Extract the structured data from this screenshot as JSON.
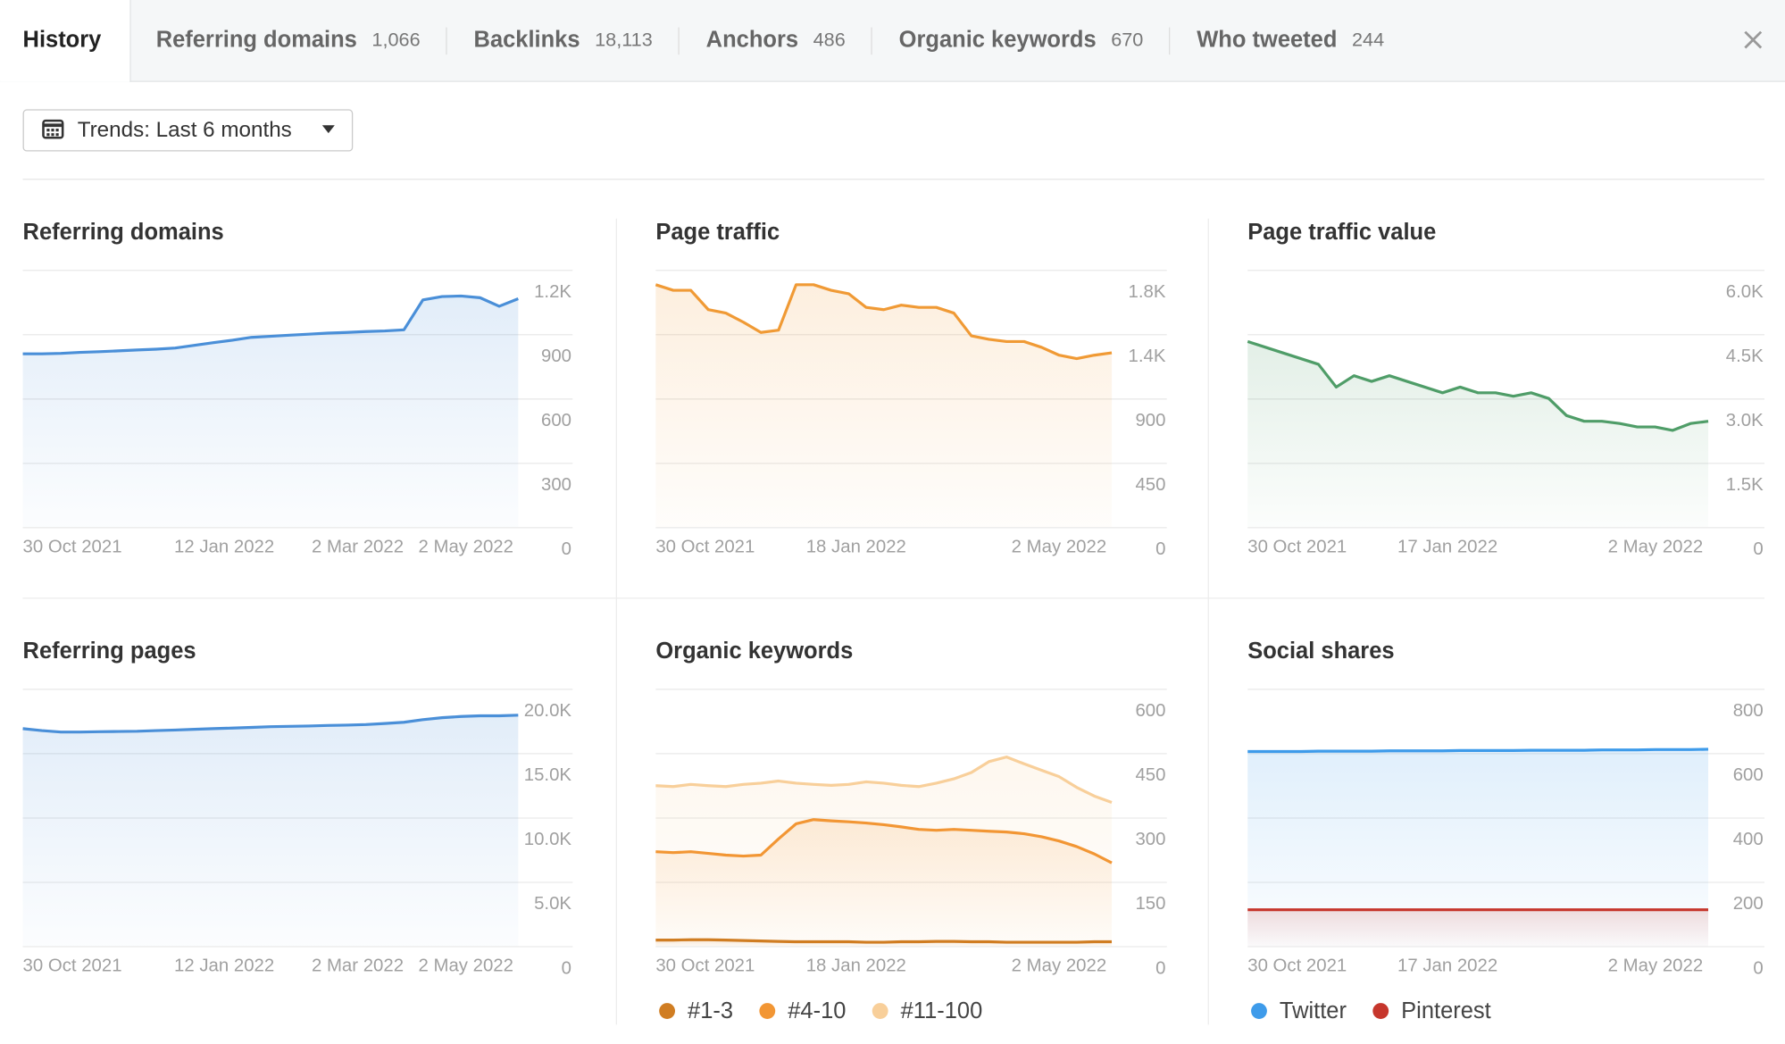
{
  "tabs": [
    {
      "label": "History"
    },
    {
      "label": "Referring domains",
      "count": "1,066"
    },
    {
      "label": "Backlinks",
      "count": "18,113"
    },
    {
      "label": "Anchors",
      "count": "486"
    },
    {
      "label": "Organic keywords",
      "count": "670"
    },
    {
      "label": "Who tweeted",
      "count": "244"
    }
  ],
  "filter": "Trends: Last 6 months",
  "dates": [
    "2021-10-30",
    "2021-11-06",
    "2021-11-13",
    "2021-11-20",
    "2021-11-27",
    "2021-12-04",
    "2021-12-11",
    "2021-12-18",
    "2021-12-25",
    "2022-01-01",
    "2022-01-08",
    "2022-01-15",
    "2022-01-22",
    "2022-01-29",
    "2022-02-05",
    "2022-02-12",
    "2022-02-19",
    "2022-02-26",
    "2022-03-05",
    "2022-03-12",
    "2022-03-19",
    "2022-03-26",
    "2022-04-02",
    "2022-04-09",
    "2022-04-16",
    "2022-04-23",
    "2022-04-30"
  ],
  "charts": [
    {
      "type": "area",
      "title": "Referring domains",
      "xlim": [
        "2021-10-30",
        "2022-05-02"
      ],
      "xticks": [
        {
          "value": "2021-10-30",
          "label": "30 Oct 2021"
        },
        {
          "value": "2022-01-12",
          "label": "12 Jan 2022"
        },
        {
          "value": "2022-03-02",
          "label": "2 Mar 2022"
        },
        {
          "value": "2022-05-02",
          "label": "2 May 2022"
        }
      ],
      "ylim": [
        0,
        1200
      ],
      "yticks": [
        0,
        300,
        600,
        900,
        {
          "value": 1200,
          "label": "1.2K"
        }
      ],
      "series": [
        {
          "color": "#4a8fd8",
          "values": [
            808,
            808,
            810,
            815,
            818,
            822,
            826,
            830,
            835,
            848,
            860,
            872,
            885,
            890,
            895,
            900,
            905,
            908,
            912,
            915,
            920,
            1060,
            1075,
            1078,
            1070,
            1030,
            1065
          ]
        }
      ]
    },
    {
      "type": "area",
      "title": "Page traffic",
      "xlim": [
        "2021-10-30",
        "2022-05-02"
      ],
      "xticks": [
        {
          "value": "2021-10-30",
          "label": "30 Oct 2021"
        },
        {
          "value": "2022-01-18",
          "label": "18 Jan 2022"
        },
        {
          "value": "2022-05-02",
          "label": "2 May 2022"
        }
      ],
      "ylim": [
        0,
        1800
      ],
      "yticks": [
        0,
        450,
        900,
        {
          "value": 1350,
          "label": "1.4K"
        },
        {
          "value": 1800,
          "label": "1.8K"
        }
      ],
      "series": [
        {
          "color": "#f09a35",
          "values": [
            1696,
            1657,
            1657,
            1521,
            1497,
            1434,
            1362,
            1378,
            1696,
            1696,
            1657,
            1633,
            1537,
            1521,
            1553,
            1537,
            1537,
            1497,
            1338,
            1314,
            1298,
            1298,
            1258,
            1203,
            1179,
            1203,
            1219
          ]
        }
      ]
    },
    {
      "type": "area",
      "title": "Page traffic value",
      "xlim": [
        "2021-10-30",
        "2022-05-02"
      ],
      "xticks": [
        {
          "value": "2021-10-30",
          "label": "30 Oct 2021"
        },
        {
          "value": "2022-01-17",
          "label": "17 Jan 2022"
        },
        {
          "value": "2022-05-02",
          "label": "2 May 2022"
        }
      ],
      "ylim": [
        0,
        6000
      ],
      "yticks": [
        0,
        {
          "value": 1500,
          "label": "1.5K"
        },
        {
          "value": 3000,
          "label": "3.0K"
        },
        {
          "value": 4500,
          "label": "4.5K"
        },
        {
          "value": 6000,
          "label": "6.0K"
        }
      ],
      "series": [
        {
          "color": "#4f9d68",
          "values": [
            4327,
            4195,
            4062,
            3929,
            3796,
            3265,
            3531,
            3398,
            3531,
            3398,
            3265,
            3133,
            3265,
            3133,
            3133,
            3053,
            3133,
            3000,
            2602,
            2469,
            2469,
            2416,
            2336,
            2336,
            2257,
            2416,
            2469
          ]
        }
      ]
    },
    {
      "type": "area",
      "title": "Referring pages",
      "xlim": [
        "2021-10-30",
        "2022-05-02"
      ],
      "xticks": [
        {
          "value": "2021-10-30",
          "label": "30 Oct 2021"
        },
        {
          "value": "2022-01-12",
          "label": "12 Jan 2022"
        },
        {
          "value": "2022-03-02",
          "label": "2 Mar 2022"
        },
        {
          "value": "2022-05-02",
          "label": "2 May 2022"
        }
      ],
      "ylim": [
        0,
        20000
      ],
      "yticks": [
        0,
        {
          "value": 5000,
          "label": "5.0K"
        },
        {
          "value": 10000,
          "label": "10.0K"
        },
        {
          "value": 15000,
          "label": "15.0K"
        },
        {
          "value": 20000,
          "label": "20.0K"
        }
      ],
      "series": [
        {
          "color": "#4a8fd8",
          "values": [
            16900,
            16750,
            16640,
            16640,
            16660,
            16680,
            16700,
            16750,
            16800,
            16850,
            16900,
            16950,
            17000,
            17050,
            17080,
            17110,
            17150,
            17180,
            17220,
            17300,
            17400,
            17600,
            17750,
            17850,
            17900,
            17900,
            17950
          ]
        }
      ]
    },
    {
      "type": "area",
      "title": "Organic keywords",
      "xlim": [
        "2021-10-30",
        "2022-05-02"
      ],
      "xticks": [
        {
          "value": "2021-10-30",
          "label": "30 Oct 2021"
        },
        {
          "value": "2022-01-18",
          "label": "18 Jan 2022"
        },
        {
          "value": "2022-05-02",
          "label": "2 May 2022"
        }
      ],
      "ylim": [
        0,
        600
      ],
      "yticks": [
        0,
        150,
        300,
        450,
        600
      ],
      "series": [
        {
          "name": "#1-3",
          "color": "#d07d22",
          "values": [
            14,
            14,
            15,
            15,
            14,
            13,
            12,
            11,
            10,
            10,
            10,
            10,
            9,
            9,
            10,
            10,
            11,
            11,
            10,
            10,
            9,
            9,
            9,
            9,
            9,
            10,
            10
          ]
        },
        {
          "name": "#4-10",
          "color": "#f29634",
          "values": [
            220,
            218,
            220,
            216,
            212,
            210,
            212,
            250,
            285,
            295,
            292,
            290,
            287,
            283,
            278,
            272,
            270,
            272,
            270,
            268,
            266,
            262,
            255,
            245,
            232,
            215,
            194
          ]
        },
        {
          "name": "#11-100",
          "color": "#f8cf9a",
          "values": [
            374,
            372,
            377,
            374,
            372,
            377,
            380,
            385,
            380,
            377,
            375,
            377,
            383,
            380,
            375,
            372,
            380,
            390,
            405,
            430,
            441,
            425,
            410,
            395,
            370,
            350,
            335
          ]
        }
      ]
    },
    {
      "type": "area",
      "title": "Social shares",
      "xlim": [
        "2021-10-30",
        "2022-05-02"
      ],
      "xticks": [
        {
          "value": "2021-10-30",
          "label": "30 Oct 2021"
        },
        {
          "value": "2022-01-17",
          "label": "17 Jan 2022"
        },
        {
          "value": "2022-05-02",
          "label": "2 May 2022"
        }
      ],
      "ylim": [
        0,
        800
      ],
      "yticks": [
        0,
        200,
        400,
        600,
        800
      ],
      "series": [
        {
          "name": "Twitter",
          "color": "#3e9bea",
          "values": [
            605,
            605,
            605,
            605,
            606,
            606,
            606,
            606,
            607,
            607,
            607,
            607,
            608,
            608,
            608,
            608,
            609,
            609,
            609,
            609,
            610,
            610,
            610,
            611,
            611,
            611,
            612
          ]
        },
        {
          "name": "Pinterest",
          "color": "#c6362c",
          "values": [
            113,
            113,
            113,
            113,
            113,
            113,
            113,
            113,
            113,
            113,
            113,
            113,
            113,
            113,
            113,
            113,
            113,
            113,
            113,
            113,
            113,
            113,
            113,
            113,
            113,
            113,
            113
          ]
        }
      ]
    }
  ]
}
